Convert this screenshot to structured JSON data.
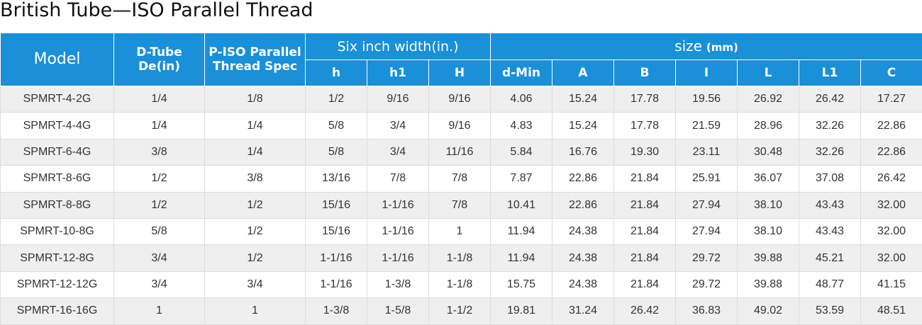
{
  "title": "British Tube—ISO Parallel Thread",
  "table": {
    "header": {
      "model": "Model",
      "dtube": [
        "D-Tube",
        "De(in)"
      ],
      "piso": [
        "P-ISO Parallel",
        "Thread Spec"
      ],
      "six_inch": "Six inch width(in.)",
      "size": {
        "label": "size",
        "unit": "(mm)"
      },
      "sub": [
        "h",
        "h1",
        "H",
        "d-Min",
        "A",
        "B",
        "I",
        "L",
        "L1",
        "C"
      ]
    },
    "rows": [
      [
        "SPMRT-4-2G",
        "1/4",
        "1/8",
        "1/2",
        "9/16",
        "9/16",
        "4.06",
        "15.24",
        "17.78",
        "19.56",
        "26.92",
        "26.42",
        "17.27"
      ],
      [
        "SPMRT-4-4G",
        "1/4",
        "1/4",
        "5/8",
        "3/4",
        "9/16",
        "4.83",
        "15.24",
        "17.78",
        "21.59",
        "28.96",
        "32.26",
        "22.86"
      ],
      [
        "SPMRT-6-4G",
        "3/8",
        "1/4",
        "5/8",
        "3/4",
        "11/16",
        "5.84",
        "16.76",
        "19.30",
        "23.11",
        "30.48",
        "32.26",
        "22.86"
      ],
      [
        "SPMRT-8-6G",
        "1/2",
        "3/8",
        "13/16",
        "7/8",
        "7/8",
        "7.87",
        "22.86",
        "21.84",
        "25.91",
        "36.07",
        "37.08",
        "26.42"
      ],
      [
        "SPMRT-8-8G",
        "1/2",
        "1/2",
        "15/16",
        "1-1/16",
        "7/8",
        "10.41",
        "22.86",
        "21.84",
        "27.94",
        "38.10",
        "43.43",
        "32.00"
      ],
      [
        "SPMRT-10-8G",
        "5/8",
        "1/2",
        "15/16",
        "1-1/16",
        "1",
        "11.94",
        "24.38",
        "21.84",
        "27.94",
        "38.10",
        "43.43",
        "32.00"
      ],
      [
        "SPMRT-12-8G",
        "3/4",
        "1/2",
        "1-1/16",
        "1-1/16",
        "1-1/8",
        "11.94",
        "24.38",
        "21.84",
        "29.72",
        "39.88",
        "45.21",
        "32.00"
      ],
      [
        "SPMRT-12-12G",
        "3/4",
        "3/4",
        "1-1/16",
        "1-3/8",
        "1-1/8",
        "15.75",
        "24.38",
        "21.84",
        "29.72",
        "39.88",
        "48.77",
        "41.15"
      ],
      [
        "SPMRT-16-16G",
        "1",
        "1",
        "1-3/8",
        "1-5/8",
        "1-1/2",
        "19.81",
        "31.24",
        "26.42",
        "36.83",
        "49.02",
        "53.59",
        "48.51"
      ]
    ]
  }
}
